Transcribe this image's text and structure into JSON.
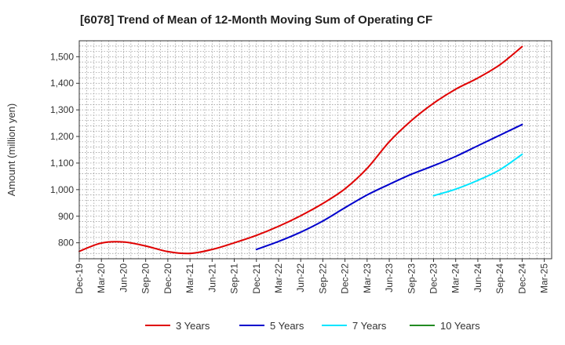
{
  "chart_data": {
    "type": "line",
    "title": "[6078]  Trend of Mean of 12-Month Moving Sum of Operating CF",
    "xlabel": "",
    "ylabel": "Amount (million yen)",
    "ylim": [
      740,
      1560
    ],
    "y_ticks": [
      800,
      900,
      1000,
      1100,
      1200,
      1300,
      1400,
      1500
    ],
    "y_tick_labels": [
      "800",
      "900",
      "1,000",
      "1,100",
      "1,200",
      "1,300",
      "1,400",
      "1,500"
    ],
    "x_tick_labels": [
      "Dec-19",
      "Mar-20",
      "Jun-20",
      "Sep-20",
      "Dec-20",
      "Mar-21",
      "Jun-21",
      "Sep-21",
      "Dec-21",
      "Mar-22",
      "Jun-22",
      "Sep-22",
      "Dec-22",
      "Mar-23",
      "Jun-23",
      "Sep-23",
      "Dec-23",
      "Mar-24",
      "Jun-24",
      "Sep-24",
      "Dec-24",
      "Mar-25"
    ],
    "x_range_months": [
      0,
      64
    ],
    "grid": true,
    "legend_position": "bottom",
    "series": [
      {
        "name": "3 Years",
        "color": "#e00000",
        "x": [
          0,
          3,
          6,
          9,
          12,
          15,
          18,
          21,
          24,
          27,
          30,
          33,
          36,
          39,
          42,
          45,
          48,
          51,
          54,
          57,
          60
        ],
        "values": [
          768,
          799,
          803,
          788,
          767,
          760,
          775,
          800,
          828,
          862,
          902,
          948,
          1003,
          1080,
          1180,
          1260,
          1325,
          1378,
          1420,
          1470,
          1538
        ]
      },
      {
        "name": "5 Years",
        "color": "#0000cc",
        "x": [
          24,
          27,
          30,
          33,
          36,
          39,
          42,
          45,
          48,
          51,
          54,
          57,
          60
        ],
        "values": [
          775,
          805,
          840,
          882,
          932,
          980,
          1020,
          1058,
          1090,
          1125,
          1165,
          1205,
          1245
        ]
      },
      {
        "name": "7 Years",
        "color": "#00e5ff",
        "x": [
          48,
          51,
          54,
          57,
          60
        ],
        "values": [
          977,
          1002,
          1035,
          1075,
          1133
        ]
      },
      {
        "name": "10 Years",
        "color": "#228B22",
        "x": [],
        "values": []
      }
    ]
  }
}
